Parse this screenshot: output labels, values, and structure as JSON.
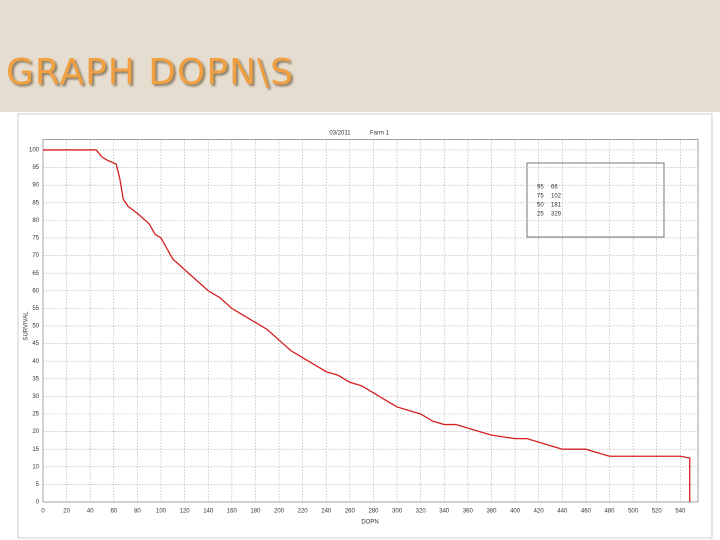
{
  "slide_title": "GRAPH DOPN\\S",
  "chart_data": {
    "type": "line",
    "title": "03/2011",
    "subtitle": "Farm 1",
    "x_label": "DOPN",
    "y_label": "SURVIVAL",
    "x": [
      0,
      45,
      50,
      55,
      62,
      65,
      68,
      72,
      80,
      90,
      95,
      100,
      105,
      110,
      120,
      130,
      140,
      150,
      160,
      170,
      180,
      190,
      200,
      210,
      220,
      230,
      240,
      250,
      260,
      270,
      280,
      290,
      300,
      310,
      320,
      330,
      340,
      350,
      360,
      370,
      380,
      400,
      410,
      420,
      440,
      460,
      470,
      480,
      500,
      540,
      548,
      548
    ],
    "series": [
      {
        "name": "Survival",
        "color": "#d42020",
        "values": [
          100,
          100,
          98,
          97,
          96,
          92,
          86,
          84,
          82,
          79,
          76,
          75,
          72,
          69,
          66,
          63,
          60,
          58,
          55,
          53,
          51,
          49,
          46,
          43,
          41,
          39,
          37,
          36,
          34,
          33,
          31,
          29,
          27,
          26,
          25,
          23,
          22,
          22,
          21,
          20,
          19,
          18,
          18,
          17,
          15,
          15,
          14,
          13,
          13,
          13,
          12.5,
          0
        ]
      }
    ],
    "annotation_rows": [
      [
        "95",
        "66"
      ],
      [
        "75",
        "102"
      ],
      [
        "50",
        "181"
      ],
      [
        "25",
        "329"
      ]
    ],
    "xlim": [
      0,
      555
    ],
    "ylim": [
      0,
      103
    ],
    "xticks": [
      0,
      20,
      40,
      60,
      80,
      100,
      120,
      140,
      160,
      180,
      200,
      220,
      240,
      260,
      280,
      300,
      320,
      340,
      360,
      380,
      400,
      420,
      440,
      460,
      480,
      500,
      520,
      540
    ],
    "yticks": [
      0,
      5,
      10,
      15,
      20,
      25,
      30,
      35,
      40,
      45,
      50,
      55,
      60,
      65,
      70,
      75,
      80,
      85,
      90,
      95,
      100
    ],
    "grid": true
  }
}
